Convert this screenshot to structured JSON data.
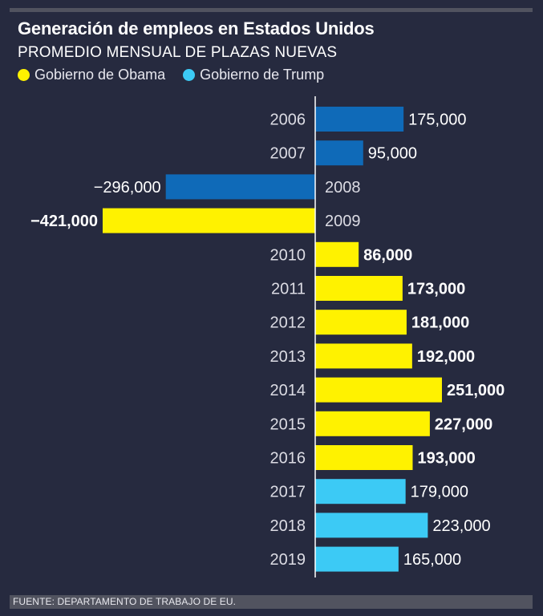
{
  "title": "Generación de empleos en Estados Unidos",
  "subtitle": "PROMEDIO MENSUAL DE PLAZAS NUEVAS",
  "legend": [
    {
      "label": "Gobierno de Obama",
      "color": "#fff200"
    },
    {
      "label": "Gobierno de Trump",
      "color": "#3ccaf5"
    }
  ],
  "footer": "FUENTE: DEPARTAMENTO DE TRABAJO DE EU.",
  "colors": {
    "pre_obama": "#0f6ab8",
    "obama": "#fff200",
    "trump": "#3ccaf5",
    "axis": "#ffffff",
    "year_label": "#dcdce4",
    "value_label": "#ffffff"
  },
  "chart_data": {
    "type": "bar",
    "orientation": "horizontal",
    "title": "Generación de empleos en Estados Unidos",
    "subtitle": "PROMEDIO MENSUAL DE PLAZAS NUEVAS",
    "categories": [
      "2006",
      "2007",
      "2008",
      "2009",
      "2010",
      "2011",
      "2012",
      "2013",
      "2014",
      "2015",
      "2016",
      "2017",
      "2018",
      "2019"
    ],
    "values": [
      175000,
      95000,
      -296000,
      -421000,
      86000,
      173000,
      181000,
      192000,
      251000,
      227000,
      193000,
      179000,
      223000,
      165000
    ],
    "value_labels": [
      "175,000",
      "95,000",
      "−296,000",
      "−421,000",
      "86,000",
      "173,000",
      "181,000",
      "192,000",
      "251,000",
      "227,000",
      "193,000",
      "179,000",
      "223,000",
      "165,000"
    ],
    "groups": [
      "pre_obama",
      "pre_obama",
      "pre_obama",
      "obama",
      "obama",
      "obama",
      "obama",
      "obama",
      "obama",
      "obama",
      "obama",
      "trump",
      "trump",
      "trump"
    ],
    "xlim": [
      -421000,
      251000
    ],
    "grid": false,
    "legend_position": "top-left"
  }
}
